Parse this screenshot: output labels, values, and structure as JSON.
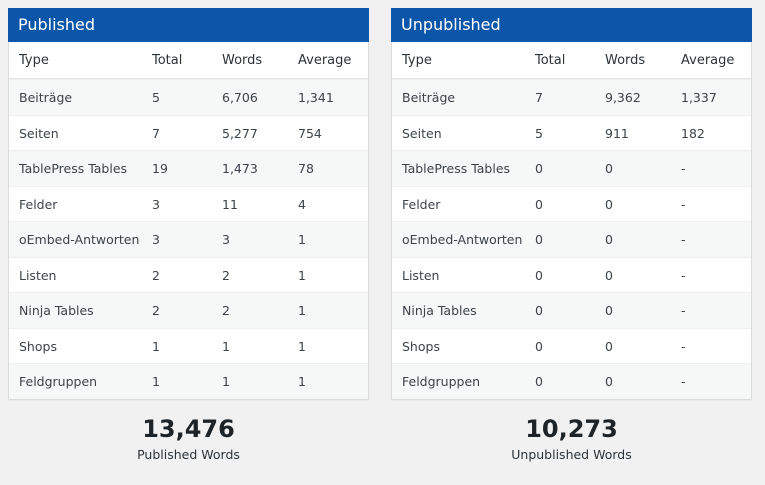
{
  "columns": {
    "type": "Type",
    "total": "Total",
    "words": "Words",
    "average": "Average"
  },
  "published": {
    "title": "Published",
    "rows": [
      {
        "type": "Beiträge",
        "total": "5",
        "words": "6,706",
        "average": "1,341"
      },
      {
        "type": "Seiten",
        "total": "7",
        "words": "5,277",
        "average": "754"
      },
      {
        "type": "TablePress Tables",
        "total": "19",
        "words": "1,473",
        "average": "78"
      },
      {
        "type": "Felder",
        "total": "3",
        "words": "11",
        "average": "4"
      },
      {
        "type": "oEmbed-Antworten",
        "total": "3",
        "words": "3",
        "average": "1"
      },
      {
        "type": "Listen",
        "total": "2",
        "words": "2",
        "average": "1"
      },
      {
        "type": "Ninja Tables",
        "total": "2",
        "words": "2",
        "average": "1"
      },
      {
        "type": "Shops",
        "total": "1",
        "words": "1",
        "average": "1"
      },
      {
        "type": "Feldgruppen",
        "total": "1",
        "words": "1",
        "average": "1"
      }
    ],
    "summary_value": "13,476",
    "summary_label": "Published Words"
  },
  "unpublished": {
    "title": "Unpublished",
    "rows": [
      {
        "type": "Beiträge",
        "total": "7",
        "words": "9,362",
        "average": "1,337"
      },
      {
        "type": "Seiten",
        "total": "5",
        "words": "911",
        "average": "182"
      },
      {
        "type": "TablePress Tables",
        "total": "0",
        "words": "0",
        "average": "-"
      },
      {
        "type": "Felder",
        "total": "0",
        "words": "0",
        "average": "-"
      },
      {
        "type": "oEmbed-Antworten",
        "total": "0",
        "words": "0",
        "average": "-"
      },
      {
        "type": "Listen",
        "total": "0",
        "words": "0",
        "average": "-"
      },
      {
        "type": "Ninja Tables",
        "total": "0",
        "words": "0",
        "average": "-"
      },
      {
        "type": "Shops",
        "total": "0",
        "words": "0",
        "average": "-"
      },
      {
        "type": "Feldgruppen",
        "total": "0",
        "words": "0",
        "average": "-"
      }
    ],
    "summary_value": "10,273",
    "summary_label": "Unpublished Words"
  },
  "colors": {
    "header_bg": "#0b56a8",
    "header_text": "#ffffff",
    "row_alt": "#f6f7f7",
    "page_bg": "#f1f1f1"
  }
}
